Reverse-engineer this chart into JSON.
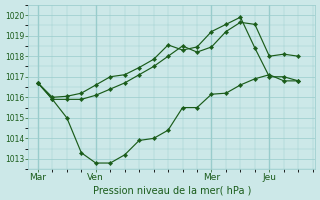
{
  "bg_color": "#cce8e8",
  "grid_color": "#99cccc",
  "line_color": "#1a5c1a",
  "marker_color": "#1a5c1a",
  "xlabel": "Pression niveau de la mer( hPa )",
  "ylim": [
    1012.5,
    1020.5
  ],
  "yticks": [
    1013,
    1014,
    1015,
    1016,
    1017,
    1018,
    1019,
    1020
  ],
  "xtick_labels": [
    "Mar",
    "Ven",
    "Mer",
    "Jeu"
  ],
  "xtick_positions": [
    0,
    24,
    72,
    96
  ],
  "xlim": [
    -4,
    115
  ],
  "line1_x": [
    0,
    6,
    12,
    18,
    24,
    30,
    36,
    42,
    48,
    54,
    60,
    66,
    72,
    78,
    84,
    90,
    96,
    102,
    108
  ],
  "line1_y": [
    1016.7,
    1015.9,
    1015.0,
    1013.3,
    1012.8,
    1012.8,
    1013.2,
    1013.9,
    1014.0,
    1014.4,
    1015.5,
    1015.5,
    1016.15,
    1016.2,
    1016.6,
    1016.9,
    1017.1,
    1016.8,
    1016.8
  ],
  "line2_x": [
    0,
    6,
    12,
    18,
    24,
    30,
    36,
    42,
    48,
    54,
    60,
    66,
    72,
    78,
    84,
    90,
    96,
    102,
    108
  ],
  "line2_y": [
    1016.7,
    1015.9,
    1015.9,
    1015.9,
    1016.1,
    1016.4,
    1016.7,
    1017.1,
    1017.5,
    1018.0,
    1018.5,
    1018.2,
    1018.45,
    1019.2,
    1019.65,
    1019.55,
    1018.0,
    1018.1,
    1018.0
  ],
  "line3_x": [
    0,
    6,
    12,
    18,
    24,
    30,
    36,
    42,
    48,
    54,
    60,
    66,
    72,
    78,
    84,
    90,
    96,
    102,
    108
  ],
  "line3_y": [
    1016.7,
    1016.0,
    1016.05,
    1016.2,
    1016.6,
    1017.0,
    1017.1,
    1017.45,
    1017.85,
    1018.55,
    1018.3,
    1018.45,
    1019.2,
    1019.55,
    1019.9,
    1018.4,
    1017.0,
    1017.0,
    1016.8
  ]
}
